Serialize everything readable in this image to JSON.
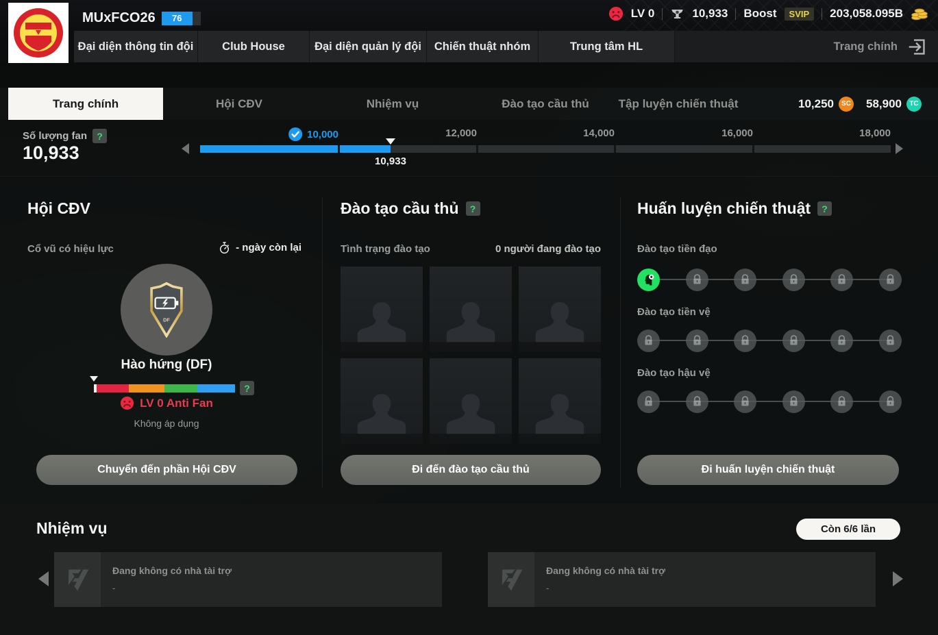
{
  "ui": {
    "help": "?"
  },
  "colors": {
    "accent_blue": "#1e9bf0",
    "anti_fan_red": "#e8293f",
    "help_green": "#3bdc78",
    "sc_orange": "#f0871c",
    "tc_teal": "#1fd3b2",
    "money_gold": "#f2c13d",
    "unlock_green": "#21e062",
    "active_tab_bg": "#f6f5f1"
  },
  "icons": {
    "club_logo": "manchester-united-crest",
    "anti_fan": "angry-face-icon",
    "fan_counter": "trophy-icon",
    "money": "gold-coins-icon",
    "exit": "exit-icon",
    "help": "question-mark-icon",
    "milestone_done": "check-circle-icon",
    "timer": "stopwatch-icon",
    "buff": "shield-battery-icon",
    "locked_node": "lock-icon",
    "unlocked_node": "player-ball-icon",
    "sponsor_placeholder": "fc-logo",
    "carousel": "arrow-triangle-icon"
  },
  "top_bar": {
    "club_name": "MUxFCO26",
    "club_level": "76",
    "nav": [
      "Đại diện thông tin đội",
      "Club House",
      "Đại diện quản lý đội",
      "Chiến thuật nhóm",
      "Trung tâm HL"
    ],
    "home_label": "Trang chính",
    "anti_fan_level": "LV 0",
    "fan_count": "10,933",
    "boost_label": "Boost",
    "svip_label": "SVIP",
    "money": "203,058.095B"
  },
  "panel_tabs": {
    "active": "Trang chính",
    "items": [
      "Hội CĐV",
      "Nhiệm vụ",
      "Đào tạo cầu thủ",
      "Tập luyện chiến thuật"
    ],
    "currencies": [
      {
        "value": "10,250",
        "code": "SC"
      },
      {
        "value": "58,900",
        "code": "TC"
      }
    ]
  },
  "fan_slider": {
    "label": "Số lượng fan",
    "value": "10,933",
    "marker": "10,933",
    "milestones": [
      {
        "label": "10,000",
        "achieved": true
      },
      {
        "label": "12,000",
        "achieved": false
      },
      {
        "label": "14,000",
        "achieved": false
      },
      {
        "label": "16,000",
        "achieved": false
      },
      {
        "label": "18,000",
        "achieved": false
      }
    ]
  },
  "fan_club": {
    "title": "Hội CĐV",
    "status_label": "Cổ vũ có hiệu lực",
    "days_left": "- ngày còn lại",
    "buff_name": "Hào hứng (DF)",
    "badge_code": "DF",
    "anti_fan_text": "LV 0 Anti Fan",
    "note": "Không áp dụng",
    "button_label": "Chuyển đến phần Hội CĐV"
  },
  "player_training": {
    "title": "Đào tạo cầu thủ",
    "status_label": "Tình trạng đào tạo",
    "active_label": "0 người đang đào tạo",
    "slot_count": 6,
    "button_label": "Đi đến đào tạo cầu thủ"
  },
  "tactic_training": {
    "title": "Huấn luyện chiến thuật",
    "tracks": [
      {
        "label": "Đào tạo tiền đạo",
        "unlocked": 1,
        "total": 6
      },
      {
        "label": "Đào tạo tiền vệ",
        "unlocked": 0,
        "total": 6
      },
      {
        "label": "Đào tạo hậu vệ",
        "unlocked": 0,
        "total": 6
      }
    ],
    "button_label": "Đi huấn luyện chiến thuật"
  },
  "missions": {
    "title": "Nhiệm vụ",
    "remaining_label": "Còn 6/6 lần",
    "sponsors": [
      {
        "name": "Đang không có nhà tài trợ",
        "value": "-"
      },
      {
        "name": "Đang không có nhà tài trợ",
        "value": "-"
      }
    ]
  }
}
